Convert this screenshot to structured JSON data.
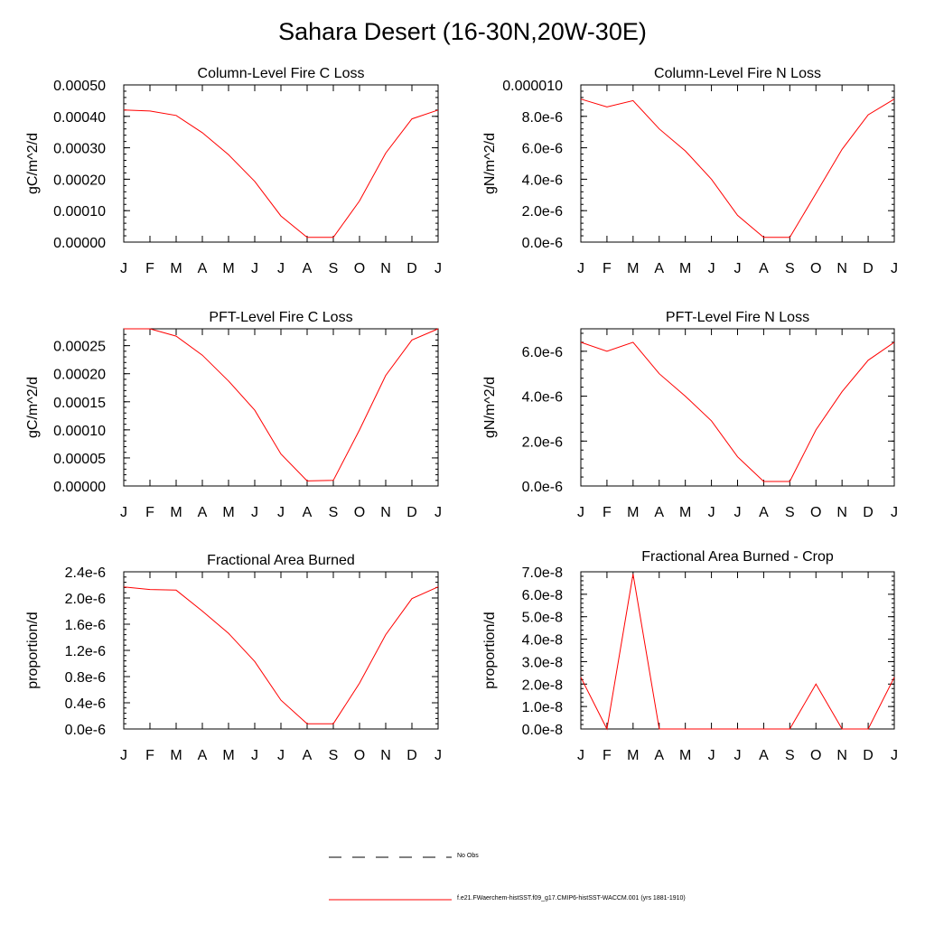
{
  "title": "Sahara Desert (16-30N,20W-30E)",
  "months": [
    "J",
    "F",
    "M",
    "A",
    "M",
    "J",
    "J",
    "A",
    "S",
    "O",
    "N",
    "D",
    "J"
  ],
  "legend": {
    "obs_label": "No Obs",
    "model_label": "f.e21.FWaerchem-histSST.f09_g17.CMIP6-histSST-WACCM.001 (yrs 1881-1910)",
    "model_color": "#ff0000",
    "obs_color": "#000000"
  },
  "chart_data": [
    {
      "type": "line",
      "title": "Column-Level Fire C Loss",
      "ylabel": "gC/m^2/d",
      "x": [
        "J",
        "F",
        "M",
        "A",
        "M",
        "J",
        "J",
        "A",
        "S",
        "O",
        "N",
        "D",
        "J"
      ],
      "ylim": [
        0,
        0.0005
      ],
      "yticks": [
        0,
        0.0001,
        0.0002,
        0.0003,
        0.0004,
        0.0005
      ],
      "ytick_labels": [
        "0.00000",
        "0.00010",
        "0.00020",
        "0.00030",
        "0.00040",
        "0.00050"
      ],
      "series": [
        {
          "color": "#ff0000",
          "values": [
            0.00042,
            0.000417,
            0.000403,
            0.000348,
            0.000278,
            0.000193,
            8.3e-05,
            1.5e-05,
            1.5e-05,
            0.000131,
            0.000283,
            0.000392,
            0.00042
          ]
        }
      ]
    },
    {
      "type": "line",
      "title": "Column-Level Fire N Loss",
      "ylabel": "gN/m^2/d",
      "x": [
        "J",
        "F",
        "M",
        "A",
        "M",
        "J",
        "J",
        "A",
        "S",
        "O",
        "N",
        "D",
        "J"
      ],
      "ylim": [
        0,
        1e-05
      ],
      "yticks": [
        0,
        2e-06,
        4e-06,
        6e-06,
        8e-06,
        1e-05
      ],
      "ytick_labels": [
        "0.0e-6",
        "2.0e-6",
        "4.0e-6",
        "6.0e-6",
        "8.0e-6",
        "0.000010"
      ],
      "series": [
        {
          "color": "#ff0000",
          "values": [
            9.1e-06,
            8.6e-06,
            9e-06,
            7.2e-06,
            5.8e-06,
            4e-06,
            1.7e-06,
            3e-07,
            3e-07,
            3.1e-06,
            5.9e-06,
            8.1e-06,
            9.1e-06
          ]
        }
      ]
    },
    {
      "type": "line",
      "title": "PFT-Level Fire C Loss",
      "ylabel": "gC/m^2/d",
      "x": [
        "J",
        "F",
        "M",
        "A",
        "M",
        "J",
        "J",
        "A",
        "S",
        "O",
        "N",
        "D",
        "J"
      ],
      "ylim": [
        0,
        0.00028
      ],
      "yticks": [
        0,
        5e-05,
        0.0001,
        0.00015,
        0.0002,
        0.00025
      ],
      "ytick_labels": [
        "0.00000",
        "0.00005",
        "0.00010",
        "0.00015",
        "0.00020",
        "0.00025"
      ],
      "series": [
        {
          "color": "#ff0000",
          "values": [
            0.00028,
            0.00028,
            0.000267,
            0.000233,
            0.000187,
            0.000135,
            5.7e-05,
            9e-06,
            1e-05,
            0.0001,
            0.000197,
            0.00026,
            0.00028
          ]
        }
      ]
    },
    {
      "type": "line",
      "title": "PFT-Level Fire N Loss",
      "ylabel": "gN/m^2/d",
      "x": [
        "J",
        "F",
        "M",
        "A",
        "M",
        "J",
        "J",
        "A",
        "S",
        "O",
        "N",
        "D",
        "J"
      ],
      "ylim": [
        0,
        7e-06
      ],
      "yticks": [
        0,
        2e-06,
        4e-06,
        6e-06
      ],
      "ytick_labels": [
        "0.0e-6",
        "2.0e-6",
        "4.0e-6",
        "6.0e-6"
      ],
      "series": [
        {
          "color": "#ff0000",
          "values": [
            6.4e-06,
            6e-06,
            6.4e-06,
            5e-06,
            4e-06,
            2.9e-06,
            1.3e-06,
            2e-07,
            2e-07,
            2.5e-06,
            4.2e-06,
            5.6e-06,
            6.4e-06
          ]
        }
      ]
    },
    {
      "type": "line",
      "title": "Fractional Area Burned",
      "ylabel": "proportion/d",
      "x": [
        "J",
        "F",
        "M",
        "A",
        "M",
        "J",
        "J",
        "A",
        "S",
        "O",
        "N",
        "D",
        "J"
      ],
      "ylim": [
        0,
        2.4e-06
      ],
      "yticks": [
        0,
        4e-07,
        8e-07,
        1.2e-06,
        1.6e-06,
        2e-06,
        2.4e-06
      ],
      "ytick_labels": [
        "0.0e-6",
        "0.4e-6",
        "0.8e-6",
        "1.2e-6",
        "1.6e-6",
        "2.0e-6",
        "2.4e-6"
      ],
      "series": [
        {
          "color": "#ff0000",
          "values": [
            2.17e-06,
            2.13e-06,
            2.12e-06,
            1.8e-06,
            1.46e-06,
            1.03e-06,
            4.4e-07,
            8e-08,
            8e-08,
            7e-07,
            1.44e-06,
            1.99e-06,
            2.17e-06
          ]
        }
      ]
    },
    {
      "type": "line",
      "title": "Fractional Area Burned - Crop",
      "ylabel": "proportion/d",
      "x": [
        "J",
        "F",
        "M",
        "A",
        "M",
        "J",
        "J",
        "A",
        "S",
        "O",
        "N",
        "D",
        "J"
      ],
      "ylim": [
        0,
        7e-08
      ],
      "yticks": [
        0,
        1e-08,
        2e-08,
        3e-08,
        4e-08,
        5e-08,
        6e-08,
        7e-08
      ],
      "ytick_labels": [
        "0.0e-8",
        "1.0e-8",
        "2.0e-8",
        "3.0e-8",
        "4.0e-8",
        "5.0e-8",
        "6.0e-8",
        "7.0e-8"
      ],
      "series": [
        {
          "color": "#ff0000",
          "values": [
            2.3e-08,
            0,
            6.9e-08,
            0,
            0,
            0,
            0,
            0,
            0,
            2e-08,
            0,
            0,
            2.3e-08
          ]
        }
      ]
    }
  ]
}
